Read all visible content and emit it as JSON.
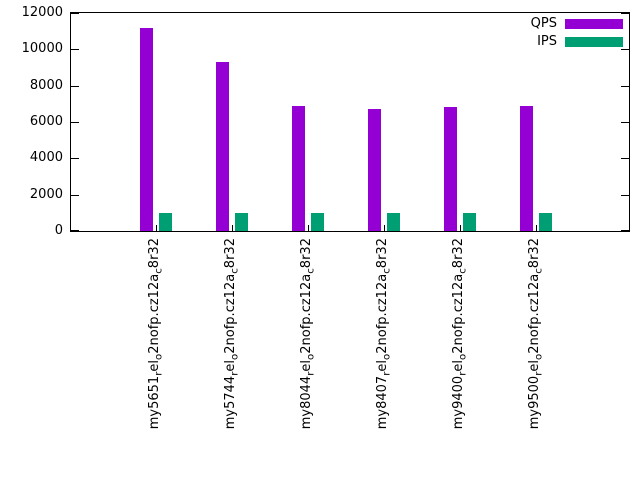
{
  "chart_data": {
    "type": "bar",
    "title": "",
    "xlabel": "",
    "ylabel": "",
    "ylim": [
      0,
      12000
    ],
    "yticks": [
      0,
      2000,
      4000,
      6000,
      8000,
      10000,
      12000
    ],
    "grid": false,
    "legend_position": "top-right",
    "categories": [
      "my5651_rel_o2nofp.cz12a_c8r32",
      "my5744_rel_o2nofp.cz12a_c8r32",
      "my8044_rel_o2nofp.cz12a_c8r32",
      "my8407_rel_o2nofp.cz12a_c8r32",
      "my9400_rel_o2nofp.cz12a_c8r32",
      "my9500_rel_o2nofp.cz12a_c8r32"
    ],
    "series": [
      {
        "name": "QPS",
        "color": "#9400d3",
        "values": [
          11200,
          9300,
          6900,
          6700,
          6850,
          6900
        ]
      },
      {
        "name": "IPS",
        "color": "#009e73",
        "values": [
          1000,
          1000,
          1000,
          1000,
          1000,
          1000
        ]
      }
    ]
  }
}
